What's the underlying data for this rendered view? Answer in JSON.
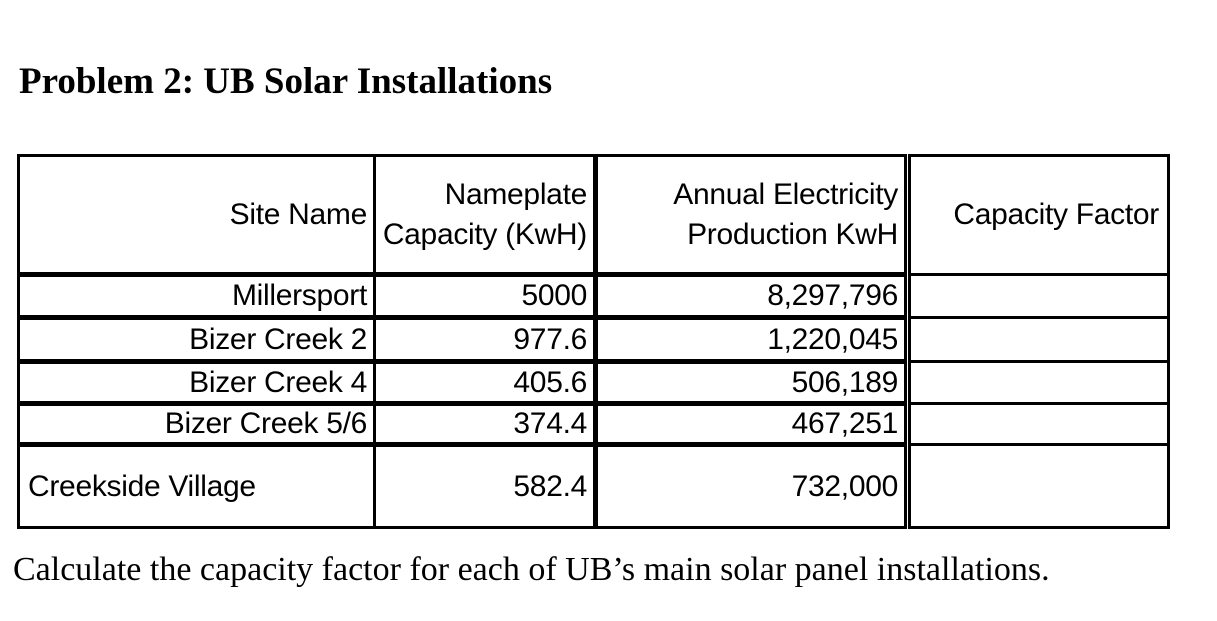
{
  "page": {
    "title": "Problem 2: UB Solar Installations",
    "instruction": "Calculate the capacity factor for each of UB’s main solar panel installations."
  },
  "table": {
    "header": {
      "site_name": "Site Name",
      "nameplate_capacity": "Nameplate\nCapacity (KwH)",
      "annual_production": "Annual Electricity\nProduction KwH",
      "capacity_factor": "Capacity Factor"
    },
    "rows": [
      {
        "site": "Millersport",
        "nameplate_capacity_kwh": "5000",
        "annual_production_kwh": "8,297,796",
        "capacity_factor": ""
      },
      {
        "site": "Bizer Creek 2",
        "nameplate_capacity_kwh": "977.6",
        "annual_production_kwh": "1,220,045",
        "capacity_factor": ""
      },
      {
        "site": "Bizer Creek 4",
        "nameplate_capacity_kwh": "405.6",
        "annual_production_kwh": "506,189",
        "capacity_factor": ""
      },
      {
        "site": "Bizer Creek 5/6",
        "nameplate_capacity_kwh": "374.4",
        "annual_production_kwh": "467,251",
        "capacity_factor": ""
      },
      {
        "site": "Creekside Village",
        "nameplate_capacity_kwh": "582.4",
        "annual_production_kwh": "732,000",
        "capacity_factor": ""
      }
    ]
  },
  "colors": {
    "text": "#000000",
    "border": "#000000",
    "background": "#ffffff"
  }
}
